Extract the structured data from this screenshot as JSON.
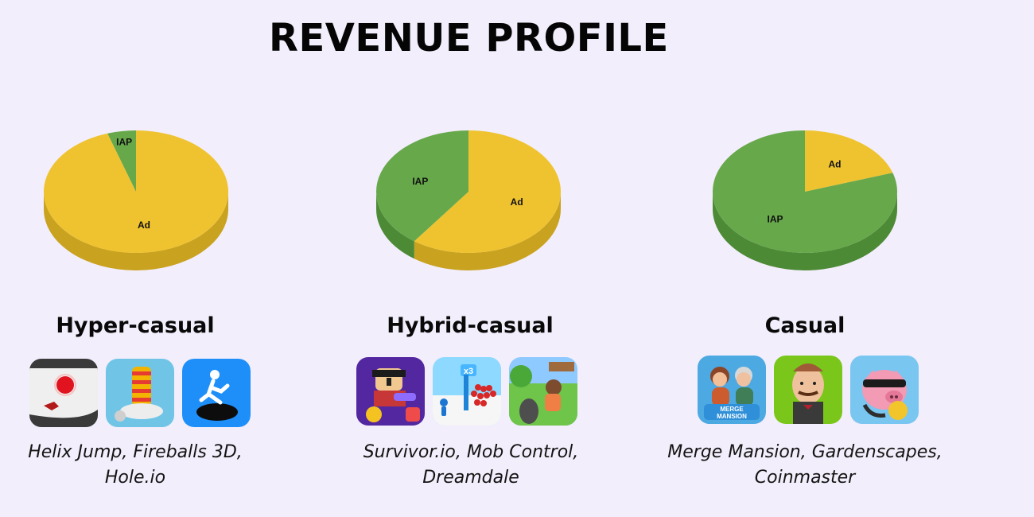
{
  "title": "REVENUE PROFILE",
  "colors": {
    "background": "#f2eefb",
    "ad_top": "#efc330",
    "ad_side": "#c9a21f",
    "iap_top": "#67a84b",
    "iap_side": "#4d8a35"
  },
  "panels": [
    {
      "name": "Hyper-casual",
      "caption_line1": "Helix Jump, Fireballs 3D,",
      "caption_line2": "Hole.io",
      "icons": [
        "helix-jump-icon",
        "fireballs-3d-icon",
        "hole-io-icon"
      ]
    },
    {
      "name": "Hybrid-casual",
      "caption_line1": "Survivor.io, Mob Control,",
      "caption_line2": "Dreamdale",
      "icons": [
        "survivor-io-icon",
        "mob-control-icon",
        "dreamdale-icon"
      ]
    },
    {
      "name": "Casual",
      "caption_line1": "Merge Mansion, Gardenscapes,",
      "caption_line2": "Coinmaster",
      "icons": [
        "merge-mansion-icon",
        "gardenscapes-icon",
        "coinmaster-icon"
      ]
    }
  ],
  "chart_data": [
    {
      "type": "pie",
      "title": "Hyper-casual",
      "categories": [
        "Ad",
        "IAP"
      ],
      "values": [
        95,
        5
      ]
    },
    {
      "type": "pie",
      "title": "Hybrid-casual",
      "categories": [
        "Ad",
        "IAP"
      ],
      "values": [
        60,
        40
      ]
    },
    {
      "type": "pie",
      "title": "Casual",
      "categories": [
        "Ad",
        "IAP"
      ],
      "values": [
        20,
        80
      ]
    }
  ]
}
